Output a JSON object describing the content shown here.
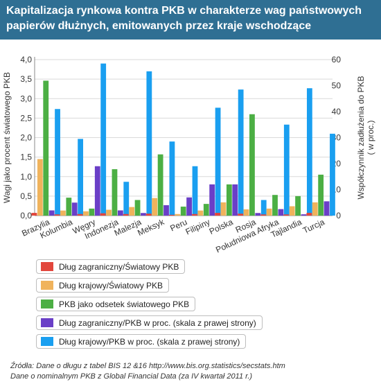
{
  "header": {
    "title": "Kapitalizacja rynkowa kontra PKB w charakterze wag państwowych papierów dłużnych, emitowanych przez kraje wschodzące"
  },
  "chart_data": {
    "type": "bar",
    "categories": [
      "Brazylia",
      "Kolumbia",
      "Węgry",
      "Indonezja",
      "Malezja",
      "Meksyk",
      "Peru",
      "Filipiny",
      "Polska",
      "Rosja",
      "Południowa Afryka",
      "Tajlandia",
      "Turcja"
    ],
    "ylabel": "Wagi jako procent światowego PKB",
    "ylabel_right": "Współczynnik zadłużenia do PKB ( w proc.)",
    "ylim": [
      0,
      4
    ],
    "ylim_right": [
      0,
      60
    ],
    "yticks": [
      "0,0",
      "0,5",
      "1,0",
      "1,5",
      "2,0",
      "2,5",
      "3,0",
      "3,5",
      "4,0"
    ],
    "yticks_right": [
      "0",
      "10",
      "20",
      "30",
      "40",
      "50",
      "60"
    ],
    "series": [
      {
        "name": "Dług zagraniczny/Światowy PKB",
        "axis": "left",
        "color": "#e2463c",
        "values": [
          0.07,
          0.03,
          0.04,
          0.06,
          0.04,
          0.05,
          0.02,
          0.04,
          0.07,
          0.05,
          0.03,
          0.03,
          0.07
        ]
      },
      {
        "name": "Dług krajowy/Światowy PKB",
        "axis": "left",
        "color": "#f0b35c",
        "values": [
          1.45,
          0.13,
          0.11,
          0.15,
          0.22,
          0.45,
          0.04,
          0.13,
          0.34,
          0.16,
          0.18,
          0.24,
          0.34
        ]
      },
      {
        "name": "PKB jako odsetek światowego PKB",
        "axis": "left",
        "color": "#4caf44",
        "values": [
          3.46,
          0.46,
          0.18,
          1.19,
          0.4,
          1.57,
          0.23,
          0.3,
          0.8,
          2.6,
          0.53,
          0.5,
          1.05
        ]
      },
      {
        "name": "Dług zagraniczny/PKB w proc. (skala z prawej strony)",
        "axis": "right",
        "color": "#6a3fc7",
        "values": [
          2,
          5,
          19,
          2,
          1,
          4,
          7,
          12,
          12,
          1,
          2.5,
          0.5,
          5.5
        ]
      },
      {
        "name": "Dług krajowy/PKB w proc. (skala z prawej strony)",
        "axis": "right",
        "color": "#1a9ff0",
        "values": [
          41,
          29.5,
          58.5,
          13,
          55.5,
          28.5,
          19,
          41.5,
          48.5,
          6,
          35,
          49,
          31.5
        ]
      }
    ]
  },
  "sources": {
    "line1": "Źródła: Dane o długu z tabel BIS 12 &16 http://www.bis.org.statistics/secstats.htm",
    "line2": "Dane o nominalnym PKB z Global Financial Data (za IV kwartał 2011 r.)"
  }
}
